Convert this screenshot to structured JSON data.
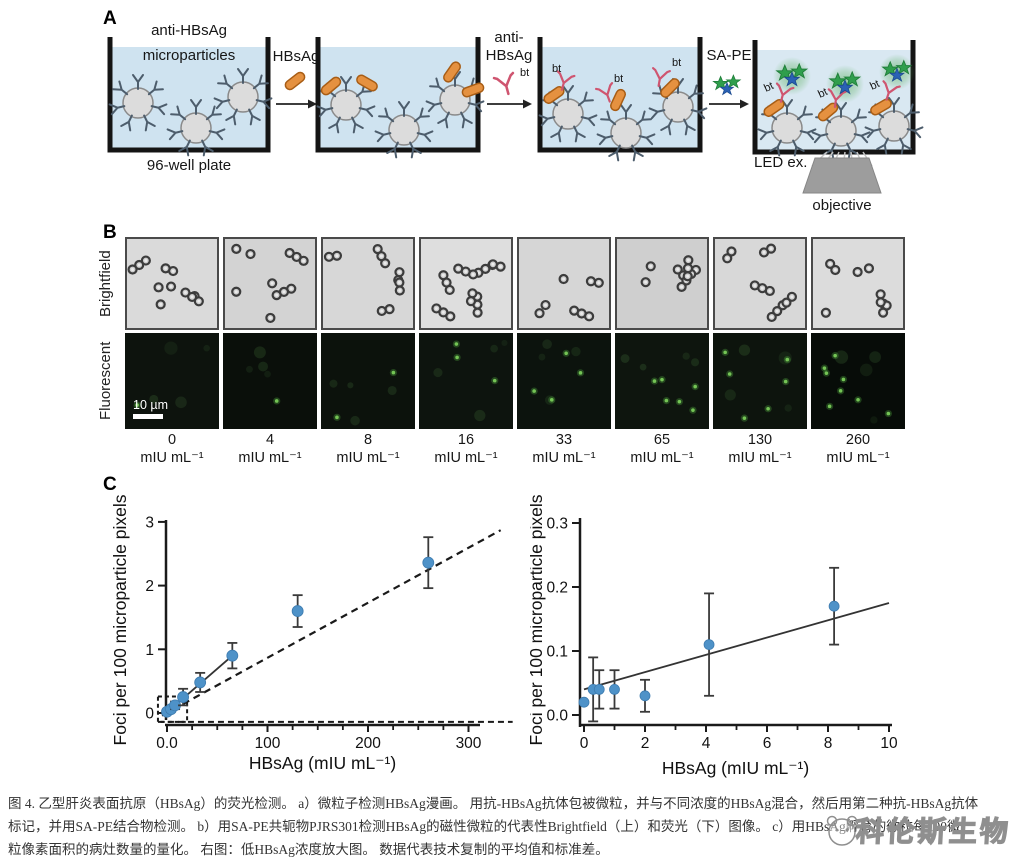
{
  "panel_a": {
    "label": "A",
    "well1_title_line1": "anti-HBsAg",
    "well1_title_line2": "microparticles",
    "well1_caption": "96-well plate",
    "arrow1_label": "HBsAg",
    "arrow2_label_line1": "anti-",
    "arrow2_label_line2": "HBsAg",
    "bt_label": "bt",
    "arrow3_label": "SA-PE",
    "led_label": "LED ex.",
    "objective_label": "objective"
  },
  "panel_b": {
    "label": "B",
    "row_labels": [
      "Brightfield",
      "Fluorescent"
    ],
    "scalebar_label": "10 µm",
    "concentrations": [
      "0",
      "4",
      "8",
      "16",
      "33",
      "65",
      "130",
      "260"
    ],
    "unit": "mIU mL⁻¹"
  },
  "panel_c": {
    "label": "C"
  },
  "chart_data": [
    {
      "type": "scatter",
      "position": "left",
      "x": [
        0,
        4,
        8,
        16,
        33,
        65,
        130,
        260
      ],
      "y": [
        0.02,
        0.06,
        0.12,
        0.25,
        0.48,
        0.9,
        1.6,
        2.36
      ],
      "yerr": [
        0.02,
        0.04,
        0.06,
        0.13,
        0.15,
        0.2,
        0.25,
        0.4
      ],
      "title": "",
      "xlabel": "HBsAg (mIU mL⁻¹)",
      "ylabel": "Foci per 100 microparticle pixels",
      "xlim": [
        -10,
        335
      ],
      "ylim": [
        -0.2,
        3
      ],
      "xtick_major": [
        0,
        100,
        200,
        300
      ],
      "xtick_labels": [
        "0.0",
        "100",
        "200",
        "300"
      ],
      "xtick_minor_step": 25,
      "ytick_major": [
        0,
        1,
        2,
        3
      ],
      "ytick_labels": [
        "0",
        "1",
        "2",
        "3"
      ],
      "grid": false,
      "legend": false,
      "marker_color": "#4e92c8",
      "errorbar_color": "#3a3a3a",
      "fit_line_solid": {
        "x1": 0,
        "y1": 0.01,
        "x2": 65,
        "y2": 0.9
      },
      "fit_line_dashed": {
        "x1": -5,
        "y1": -0.04,
        "x2": 332,
        "y2": 2.87
      },
      "zoom_box": {
        "x1": -9,
        "y1": -0.14,
        "x2": 20,
        "y2": 0.26
      },
      "dashed_hline": {
        "y": -0.14,
        "x1": -9,
        "x2": 332
      }
    },
    {
      "type": "scatter",
      "position": "right",
      "x": [
        0,
        0.3,
        0.5,
        1,
        2,
        4.1,
        8.2
      ],
      "y": [
        0.02,
        0.04,
        0.04,
        0.04,
        0.03,
        0.11,
        0.17
      ],
      "yerr": [
        0,
        0.05,
        0.03,
        0.03,
        0.025,
        0.08,
        0.06
      ],
      "title": "",
      "xlabel": "HBsAg (mIU mL⁻¹)",
      "ylabel": "Foci per 100 microparticle pixels",
      "xlim": [
        -0.3,
        10
      ],
      "ylim": [
        0,
        0.3
      ],
      "xtick_major": [
        0,
        2,
        4,
        6,
        8,
        10
      ],
      "xtick_labels": [
        "0",
        "2",
        "4",
        "6",
        "8",
        "10"
      ],
      "xtick_minor_step": 1,
      "ytick_major": [
        0,
        0.1,
        0.2,
        0.3
      ],
      "ytick_labels": [
        "0.0",
        "0.1",
        "0.2",
        "0.3"
      ],
      "grid": false,
      "legend": false,
      "marker_color": "#4e92c8",
      "errorbar_color": "#3a3a3a",
      "fit_line_solid": {
        "x1": 0,
        "y1": 0.04,
        "x2": 10,
        "y2": 0.175
      }
    }
  ],
  "caption": {
    "line1": "图 4. 乙型肝炎表面抗原（HBsAg）的荧光检测。 a）微粒子检测HBsAg漫画。 用抗-HBsAg抗体包被微粒，并与不同浓度的HBsAg混合，然后用第二种抗-HBsAg抗体",
    "line2": "标记，并用SA-PE结合物检测。 b）用SA-PE共轭物PJRS301检测HBsAg的磁性微粒的代表性Brightfield（上）和荧光（下）图像。 c）用HBsAg孵育的微粒每100微",
    "line3": "粒像素面积的病灶数量的量化。 右图：低HBsAg浓度放大图。 数据代表技术复制的平均值和标准差。"
  },
  "watermark": {
    "text": "科伦斯生物"
  }
}
